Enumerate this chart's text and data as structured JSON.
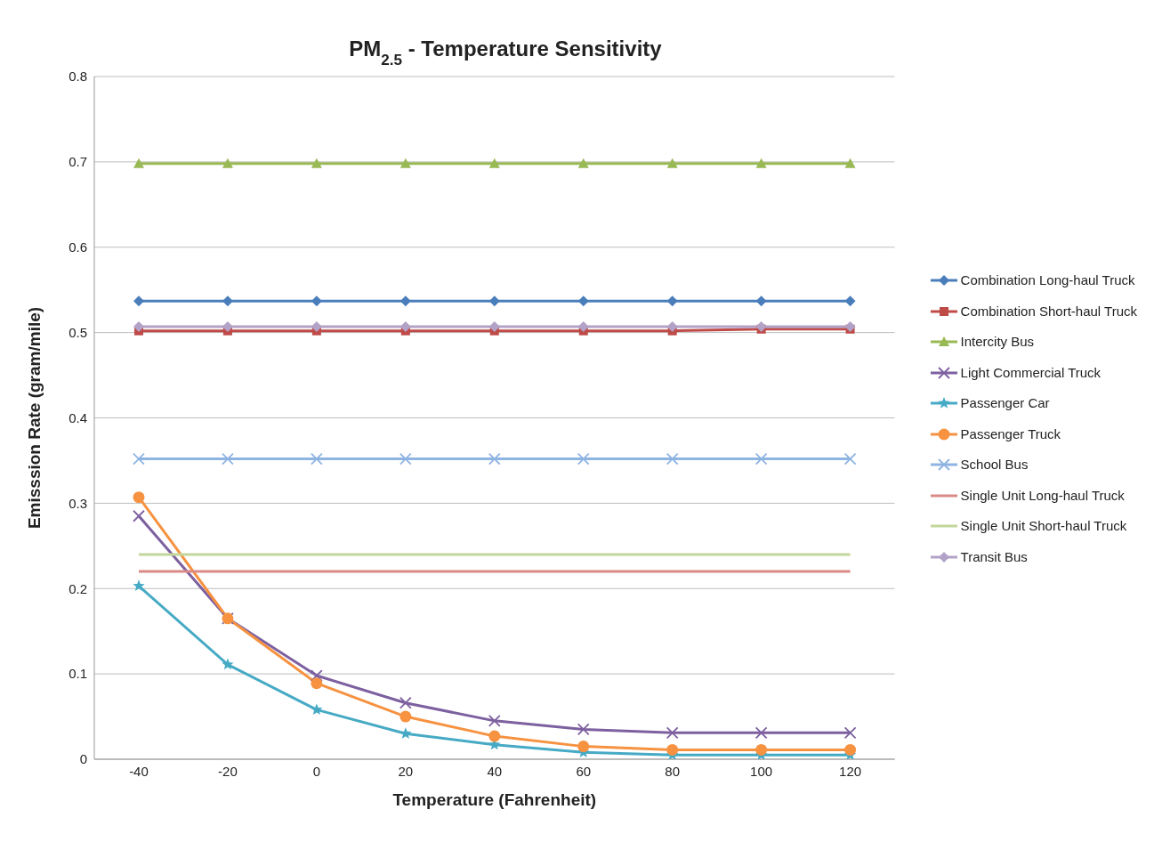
{
  "chart_data": {
    "type": "line",
    "title": "PM$_{2.5}$ - Temperature Sensitivity",
    "xlabel": "Temperature (Fahrenheit)",
    "ylabel": "Emisssion Rate (gram/mile)",
    "x": [
      -40,
      -20,
      0,
      20,
      40,
      60,
      80,
      100,
      120
    ],
    "xlim": [
      -50,
      130
    ],
    "xticks": [
      -40,
      -20,
      0,
      20,
      40,
      60,
      80,
      100,
      120
    ],
    "ylim": [
      0,
      0.8
    ],
    "yticks": [
      0,
      0.1,
      0.2,
      0.3,
      0.4,
      0.5,
      0.6,
      0.7,
      0.8
    ],
    "grid": "y",
    "legend": "right",
    "series": [
      {
        "name": "Combination Long-haul Truck",
        "color": "#4a7ebb",
        "marker": "diamond",
        "values": [
          0.537,
          0.537,
          0.537,
          0.537,
          0.537,
          0.537,
          0.537,
          0.537,
          0.537
        ]
      },
      {
        "name": "Combination Short-haul Truck",
        "color": "#be4b48",
        "marker": "square",
        "values": [
          0.502,
          0.502,
          0.502,
          0.502,
          0.502,
          0.502,
          0.502,
          0.504,
          0.504
        ]
      },
      {
        "name": "Intercity Bus",
        "color": "#98b954",
        "marker": "triangle",
        "values": [
          0.698,
          0.698,
          0.698,
          0.698,
          0.698,
          0.698,
          0.698,
          0.698,
          0.698
        ]
      },
      {
        "name": "Light Commercial Truck",
        "color": "#7d60a0",
        "marker": "cross",
        "values": [
          0.285,
          0.165,
          0.098,
          0.066,
          0.045,
          0.035,
          0.031,
          0.031,
          0.031
        ]
      },
      {
        "name": "Passenger Car",
        "color": "#46aac5",
        "marker": "star",
        "values": [
          0.203,
          0.111,
          0.058,
          0.03,
          0.017,
          0.008,
          0.005,
          0.005,
          0.005
        ]
      },
      {
        "name": "Passenger Truck",
        "color": "#f69240",
        "marker": "circle",
        "values": [
          0.307,
          0.165,
          0.089,
          0.05,
          0.027,
          0.015,
          0.011,
          0.011,
          0.011
        ]
      },
      {
        "name": "School Bus",
        "color": "#8eb4e3",
        "marker": "cross",
        "values": [
          0.352,
          0.352,
          0.352,
          0.352,
          0.352,
          0.352,
          0.352,
          0.352,
          0.352
        ]
      },
      {
        "name": "Single Unit Long-haul Truck",
        "color": "#da8a87",
        "marker": "none",
        "values": [
          0.22,
          0.22,
          0.22,
          0.22,
          0.22,
          0.22,
          0.22,
          0.22,
          0.22
        ]
      },
      {
        "name": "Single Unit Short-haul Truck",
        "color": "#c3d69b",
        "marker": "none",
        "values": [
          0.24,
          0.24,
          0.24,
          0.24,
          0.24,
          0.24,
          0.24,
          0.24,
          0.24
        ]
      },
      {
        "name": "Transit Bus",
        "color": "#b3a2c7",
        "marker": "diamond",
        "values": [
          0.507,
          0.507,
          0.507,
          0.507,
          0.507,
          0.507,
          0.507,
          0.507,
          0.507
        ]
      }
    ]
  }
}
